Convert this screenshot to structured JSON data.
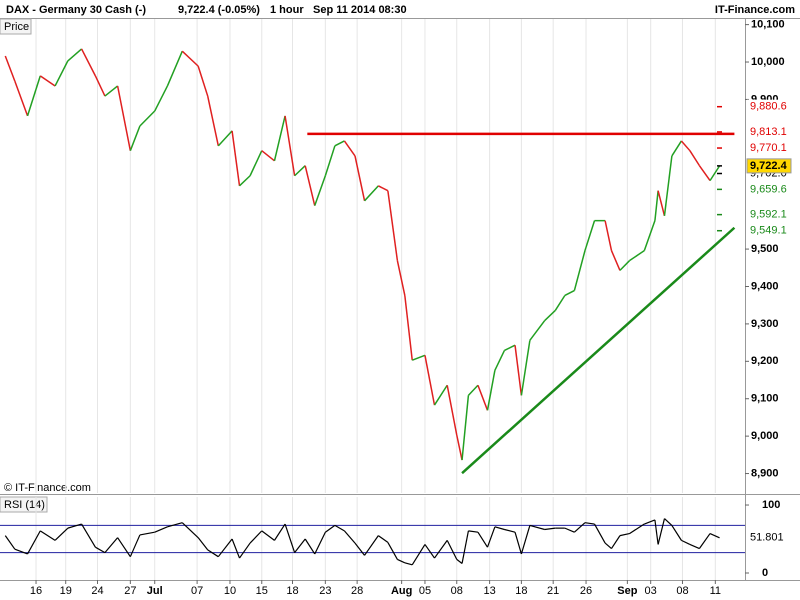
{
  "chart_data": [
    {
      "type": "line",
      "title": "DAX - Germany 30 Cash (-)",
      "quote": "9,722.4 (-0.05%)",
      "interval": "1 hour",
      "timestamp": "Sep 11 2014 08:30",
      "brand": "IT-Finance.com",
      "panel_label": "Price",
      "copyright": "© IT-Finance.com",
      "up_color": "#22a022",
      "down_color": "#e02020",
      "x": [
        0.5,
        1.4,
        2.6,
        3.8,
        5.2,
        6.4,
        7.7,
        9.0,
        9.9,
        11.1,
        12.3,
        13.2,
        14.6,
        15.8,
        17.2,
        18.7,
        19.6,
        20.6,
        21.9,
        22.6,
        23.6,
        24.7,
        25.9,
        26.9,
        27.8,
        28.8,
        29.7,
        30.7,
        31.6,
        32.5,
        33.5,
        34.4,
        35.7,
        36.6,
        37.5,
        38.2,
        38.9,
        40.1,
        41.0,
        42.2,
        43.1,
        43.6,
        44.2,
        45.1,
        46.0,
        46.7,
        47.6,
        48.6,
        49.2,
        50.0,
        51.4,
        52.4,
        53.3,
        54.2,
        55.2,
        56.1,
        57.1,
        57.7,
        58.5,
        59.4,
        60.8,
        61.8,
        62.1,
        62.7,
        63.4,
        64.3,
        65.1,
        66.0,
        67.0,
        67.9
      ],
      "values": [
        10016,
        9949,
        9856,
        9963,
        9936,
        10003,
        10035,
        9963,
        9909,
        9936,
        9763,
        9829,
        9869,
        9936,
        10029,
        9989,
        9909,
        9776,
        9816,
        9669,
        9696,
        9763,
        9736,
        9856,
        9696,
        9723,
        9616,
        9696,
        9776,
        9789,
        9749,
        9629,
        9669,
        9656,
        9469,
        9376,
        9203,
        9216,
        9083,
        9136,
        9003,
        8936,
        9109,
        9136,
        9069,
        9176,
        9229,
        9243,
        9109,
        9256,
        9309,
        9336,
        9376,
        9389,
        9496,
        9576,
        9576,
        9496,
        9443,
        9469,
        9496,
        9576,
        9656,
        9589,
        9749,
        9789,
        9763,
        9723,
        9683,
        9722.4
      ],
      "xlim": [
        0,
        70.3
      ],
      "ylim": [
        8848,
        10115
      ],
      "yticks": [
        {
          "value": 10100,
          "label": "10,100"
        },
        {
          "value": 10000,
          "label": "10,000"
        },
        {
          "value": 9900,
          "label": "9,900"
        },
        {
          "value": 9500,
          "label": "9,500"
        },
        {
          "value": 9400,
          "label": "9,400"
        },
        {
          "value": 9300,
          "label": "9,300"
        },
        {
          "value": 9200,
          "label": "9,200"
        },
        {
          "value": 9100,
          "label": "9,100"
        },
        {
          "value": 9000,
          "label": "9,000"
        },
        {
          "value": 8900,
          "label": "8,900"
        }
      ],
      "levels": [
        {
          "value": 9880.6,
          "label": "9,880.6",
          "color": "#e00000"
        },
        {
          "value": 9813.1,
          "label": "9,813.1",
          "color": "#e00000"
        },
        {
          "value": 9770.1,
          "label": "9,770.1",
          "color": "#e00000"
        },
        {
          "value": 9702.0,
          "label": "9,702.0",
          "color": "#000000"
        },
        {
          "value": 9722.4,
          "label": "9,722.4",
          "color": "#000000",
          "background": "#ffd700"
        },
        {
          "value": 9659.6,
          "label": "9,659.6",
          "color": "#1a8a1a"
        },
        {
          "value": 9592.1,
          "label": "9,592.1",
          "color": "#1a8a1a"
        },
        {
          "value": 9549.1,
          "label": "9,549.1",
          "color": "#1a8a1a"
        }
      ],
      "trendlines": [
        {
          "color": "#e00000",
          "x": [
            29.0,
            69.3
          ],
          "y": [
            9808,
            9808
          ]
        },
        {
          "color": "#1a8a1a",
          "x": [
            43.6,
            69.3
          ],
          "y": [
            8901,
            9557
          ]
        }
      ]
    },
    {
      "type": "line",
      "title": "RSI (14)",
      "color": "#000000",
      "band_color": "#2020a0",
      "x": [
        0.5,
        1.4,
        2.6,
        3.8,
        5.2,
        6.4,
        7.7,
        9.0,
        9.9,
        11.1,
        12.3,
        13.2,
        14.6,
        15.8,
        17.2,
        18.7,
        19.6,
        20.6,
        21.9,
        22.6,
        23.6,
        24.7,
        25.9,
        26.9,
        27.8,
        28.8,
        29.7,
        30.7,
        31.6,
        32.5,
        33.5,
        34.4,
        35.7,
        36.6,
        37.5,
        38.2,
        38.9,
        40.1,
        41.0,
        42.2,
        43.1,
        43.6,
        44.2,
        45.1,
        46.0,
        46.7,
        47.6,
        48.6,
        49.2,
        50.0,
        51.4,
        52.4,
        53.3,
        54.2,
        55.2,
        56.1,
        57.1,
        57.7,
        58.5,
        59.4,
        60.8,
        61.8,
        62.1,
        62.7,
        63.4,
        64.3,
        65.1,
        66.0,
        67.0,
        67.9
      ],
      "values": [
        55,
        35,
        28,
        62,
        48,
        66,
        72,
        38,
        30,
        52,
        24,
        56,
        60,
        68,
        74,
        52,
        34,
        24,
        50,
        22,
        44,
        62,
        48,
        72,
        30,
        50,
        28,
        60,
        70,
        62,
        44,
        26,
        55,
        45,
        20,
        15,
        12,
        42,
        22,
        48,
        20,
        14,
        62,
        60,
        38,
        68,
        64,
        60,
        28,
        70,
        64,
        66,
        66,
        60,
        74,
        72,
        44,
        36,
        55,
        58,
        72,
        78,
        42,
        80,
        70,
        48,
        42,
        36,
        58,
        51.801
      ],
      "bands": [
        70,
        30
      ],
      "xlim": [
        0,
        70.3
      ],
      "ylim": [
        -10.3,
        111.8
      ],
      "yticks": [
        0,
        100
      ],
      "xticks": [
        {
          "value": 3.4,
          "label": "16"
        },
        {
          "value": 6.2,
          "label": "19"
        },
        {
          "value": 9.2,
          "label": "24"
        },
        {
          "value": 12.3,
          "label": "27"
        },
        {
          "value": 14.6,
          "label": "Jul",
          "bold": true
        },
        {
          "value": 18.6,
          "label": "07"
        },
        {
          "value": 21.7,
          "label": "10"
        },
        {
          "value": 24.7,
          "label": "15"
        },
        {
          "value": 27.6,
          "label": "18"
        },
        {
          "value": 30.7,
          "label": "23"
        },
        {
          "value": 33.7,
          "label": "28"
        },
        {
          "value": 37.9,
          "label": "Aug",
          "bold": true
        },
        {
          "value": 40.1,
          "label": "05"
        },
        {
          "value": 43.1,
          "label": "08"
        },
        {
          "value": 46.2,
          "label": "13"
        },
        {
          "value": 49.2,
          "label": "18"
        },
        {
          "value": 52.2,
          "label": "21"
        },
        {
          "value": 55.3,
          "label": "26"
        },
        {
          "value": 59.2,
          "label": "Sep",
          "bold": true
        },
        {
          "value": 61.4,
          "label": "03"
        },
        {
          "value": 64.4,
          "label": "08"
        },
        {
          "value": 67.5,
          "label": "11"
        }
      ]
    }
  ]
}
